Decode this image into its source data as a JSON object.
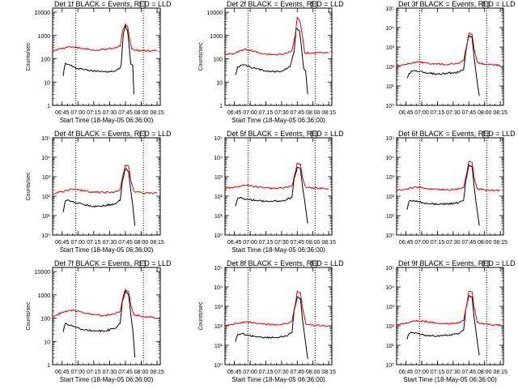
{
  "chart_data": [
    {
      "type": "line",
      "title": "Det 1f BLACK = Events, RED = LLD",
      "xlabel": "Start Time (18-May-05 06:36:00)",
      "ylabel": "Counts/sec",
      "x_ticks": [
        "06:45",
        "07:00",
        "07:15",
        "07:30",
        "07:45",
        "08:00",
        "08:15"
      ],
      "y_ticks": [
        "1",
        "10",
        "100",
        "1000",
        "10000"
      ],
      "y_scale": "log",
      "ylim": [
        1,
        15000
      ],
      "vlines": [
        "06:58",
        "08:02"
      ],
      "series": [
        {
          "color": "#000000",
          "x": [
            "06:46",
            "06:48",
            "06:52",
            "06:56",
            "07:00",
            "07:10",
            "07:20",
            "07:30",
            "07:35",
            "07:40",
            "07:41",
            "07:43",
            "07:45",
            "07:47",
            "07:49",
            "07:50",
            "07:52",
            "07:53"
          ],
          "values": [
            18,
            65,
            55,
            45,
            38,
            32,
            28,
            28,
            30,
            40,
            60,
            1200,
            2600,
            1600,
            200,
            60,
            50,
            3
          ]
        },
        {
          "color": "#dd0000",
          "x": [
            "06:36",
            "06:45",
            "06:55",
            "07:05",
            "07:15",
            "07:25",
            "07:35",
            "07:40",
            "07:42",
            "07:45",
            "07:47",
            "07:49",
            "07:51",
            "07:55",
            "08:05",
            "08:15"
          ],
          "values": [
            220,
            280,
            330,
            270,
            240,
            250,
            290,
            340,
            1400,
            3100,
            2400,
            700,
            260,
            230,
            220,
            220
          ]
        }
      ]
    },
    {
      "type": "line",
      "title": "Det 2f BLACK = Events, RED = LLD",
      "xlabel": "Start Time (18-May-05 06:36:00)",
      "ylabel": "Counts/sec",
      "x_ticks": [
        "06:45",
        "07:00",
        "07:15",
        "07:30",
        "07:45",
        "08:00",
        "08:15"
      ],
      "y_ticks": [
        "1",
        "10",
        "100",
        "1000",
        "10000"
      ],
      "y_scale": "log",
      "ylim": [
        1,
        15000
      ],
      "vlines": [
        "06:58",
        "08:02"
      ],
      "series": [
        {
          "color": "#000000",
          "x": [
            "06:46",
            "06:48",
            "06:52",
            "06:58",
            "07:05",
            "07:15",
            "07:25",
            "07:30",
            "07:38",
            "07:42",
            "07:44",
            "07:47",
            "07:49",
            "07:51",
            "07:53",
            "07:55"
          ],
          "values": [
            20,
            45,
            55,
            48,
            38,
            30,
            28,
            30,
            45,
            200,
            2000,
            1600,
            300,
            40,
            30,
            3
          ]
        },
        {
          "color": "#dd0000",
          "x": [
            "06:36",
            "06:45",
            "06:55",
            "07:05",
            "07:15",
            "07:25",
            "07:35",
            "07:40",
            "07:43",
            "07:45",
            "07:48",
            "07:50",
            "07:52",
            "08:00",
            "08:10",
            "08:15"
          ],
          "values": [
            150,
            170,
            260,
            200,
            160,
            150,
            170,
            230,
            1000,
            6000,
            3500,
            900,
            180,
            180,
            180,
            170
          ]
        }
      ]
    },
    {
      "type": "line",
      "title": "Det 3f BLACK = Events, RED = LLD",
      "xlabel": "",
      "ylabel": "",
      "x_ticks": [
        "06:45",
        "07:00",
        "07:15",
        "07:30",
        "07:45",
        "08:00",
        "08:15"
      ],
      "y_ticks": [
        "10⁰",
        "10¹",
        "10²",
        "10³",
        "10⁴",
        "10⁵"
      ],
      "y_scale": "log",
      "ylim": [
        1,
        100000
      ],
      "vlines": [
        "06:58",
        "08:02"
      ],
      "series": [
        {
          "color": "#000000",
          "x": [
            "06:46",
            "06:48",
            "06:52",
            "06:58",
            "07:05",
            "07:15",
            "07:25",
            "07:35",
            "07:40",
            "07:42",
            "07:45",
            "07:48",
            "07:50",
            "07:52",
            "07:55"
          ],
          "values": [
            25,
            45,
            60,
            55,
            45,
            40,
            45,
            50,
            70,
            500,
            4000,
            3000,
            300,
            40,
            3
          ]
        },
        {
          "color": "#dd0000",
          "x": [
            "06:36",
            "06:45",
            "06:55",
            "07:05",
            "07:15",
            "07:25",
            "07:35",
            "07:40",
            "07:43",
            "07:45",
            "07:48",
            "07:50",
            "07:53",
            "08:00",
            "08:10",
            "08:15"
          ],
          "values": [
            110,
            130,
            170,
            150,
            130,
            130,
            150,
            200,
            1200,
            5000,
            4500,
            800,
            160,
            130,
            120,
            110
          ]
        }
      ]
    },
    {
      "type": "line",
      "title": "Det 4f BLACK = Events, RED = LLD",
      "xlabel": "Start Time (18-May-05 06:36:00)",
      "ylabel": "Counts/sec",
      "x_ticks": [
        "06:45",
        "07:00",
        "07:15",
        "07:30",
        "07:45",
        "08:00",
        "08:15"
      ],
      "y_ticks": [
        "10⁰",
        "10¹",
        "10²",
        "10³",
        "10⁴",
        "10⁵"
      ],
      "y_scale": "log",
      "ylim": [
        1,
        100000
      ],
      "vlines": [
        "06:58",
        "08:02"
      ],
      "series": [
        {
          "color": "#000000",
          "x": [
            "06:46",
            "06:48",
            "06:52",
            "06:58",
            "07:05",
            "07:15",
            "07:25",
            "07:35",
            "07:40",
            "07:42",
            "07:45",
            "07:48",
            "07:50",
            "07:52",
            "07:54"
          ],
          "values": [
            15,
            55,
            60,
            45,
            38,
            30,
            32,
            40,
            60,
            600,
            2500,
            1800,
            200,
            30,
            3
          ]
        },
        {
          "color": "#dd0000",
          "x": [
            "06:36",
            "06:45",
            "06:55",
            "07:05",
            "07:15",
            "07:25",
            "07:35",
            "07:40",
            "07:43",
            "07:45",
            "07:48",
            "07:50",
            "07:53",
            "08:00",
            "08:10",
            "08:15"
          ],
          "values": [
            140,
            170,
            230,
            190,
            160,
            150,
            170,
            220,
            1500,
            4000,
            3500,
            700,
            180,
            150,
            140,
            140
          ]
        }
      ]
    },
    {
      "type": "line",
      "title": "Det 5f BLACK = Events, RED = LLD",
      "xlabel": "Start Time (18-May-05 06:36:00)",
      "ylabel": "",
      "x_ticks": [
        "06:45",
        "07:00",
        "07:15",
        "07:30",
        "07:45",
        "08:00",
        "08:15"
      ],
      "y_ticks": [
        "10⁰",
        "10¹",
        "10²",
        "10³",
        "10⁴",
        "10⁵"
      ],
      "y_scale": "log",
      "ylim": [
        1,
        100000
      ],
      "vlines": [
        "06:58",
        "08:02"
      ],
      "series": [
        {
          "color": "#000000",
          "x": [
            "06:46",
            "06:48",
            "06:52",
            "06:58",
            "07:05",
            "07:15",
            "07:25",
            "07:35",
            "07:40",
            "07:42",
            "07:45",
            "07:48",
            "07:50",
            "07:52",
            "07:55"
          ],
          "values": [
            30,
            75,
            80,
            70,
            60,
            55,
            55,
            65,
            90,
            800,
            3000,
            2500,
            300,
            60,
            4
          ]
        },
        {
          "color": "#dd0000",
          "x": [
            "06:36",
            "06:45",
            "06:55",
            "07:05",
            "07:15",
            "07:25",
            "07:35",
            "07:40",
            "07:43",
            "07:45",
            "07:48",
            "07:50",
            "07:53",
            "08:00",
            "08:10",
            "08:15"
          ],
          "values": [
            250,
            280,
            350,
            300,
            260,
            250,
            280,
            340,
            1600,
            5000,
            4500,
            900,
            300,
            260,
            250,
            250
          ]
        }
      ]
    },
    {
      "type": "line",
      "title": "Det 6f BLACK = Events, RED = LLD",
      "xlabel": "",
      "ylabel": "",
      "x_ticks": [
        "06:45",
        "07:00",
        "07:15",
        "07:30",
        "07:45",
        "08:00",
        "08:15"
      ],
      "y_ticks": [
        "10⁰",
        "10¹",
        "10²",
        "10³",
        "10⁴",
        "10⁵"
      ],
      "y_scale": "log",
      "ylim": [
        1,
        100000
      ],
      "vlines": [
        "06:58",
        "08:02"
      ],
      "series": [
        {
          "color": "#000000",
          "x": [
            "06:46",
            "06:48",
            "06:52",
            "06:58",
            "07:05",
            "07:15",
            "07:25",
            "07:35",
            "07:40",
            "07:42",
            "07:45",
            "07:48",
            "07:50",
            "07:52",
            "07:55"
          ],
          "values": [
            20,
            55,
            60,
            50,
            42,
            38,
            40,
            45,
            60,
            600,
            4000,
            3500,
            300,
            40,
            3
          ]
        },
        {
          "color": "#dd0000",
          "x": [
            "06:36",
            "06:45",
            "06:55",
            "07:05",
            "07:15",
            "07:25",
            "07:35",
            "07:40",
            "07:43",
            "07:45",
            "07:48",
            "07:50",
            "07:53",
            "08:00",
            "08:10",
            "08:15"
          ],
          "values": [
            200,
            230,
            290,
            250,
            220,
            210,
            230,
            280,
            1500,
            6000,
            5500,
            900,
            230,
            210,
            200,
            200
          ]
        }
      ]
    },
    {
      "type": "line",
      "title": "Det 7f BLACK = Events, RED = LLD",
      "xlabel": "Start Time (18-May-05 06:36:00)",
      "ylabel": "Counts/sec",
      "x_ticks": [
        "06:45",
        "07:00",
        "07:15",
        "07:30",
        "07:45",
        "08:00",
        "08:15"
      ],
      "y_ticks": [
        "1",
        "10",
        "100",
        "1000",
        "10000"
      ],
      "y_scale": "log",
      "ylim": [
        1,
        15000
      ],
      "vlines": [
        "06:58",
        "08:02"
      ],
      "series": [
        {
          "color": "#000000",
          "x": [
            "06:46",
            "06:48",
            "06:52",
            "06:58",
            "07:05",
            "07:15",
            "07:25",
            "07:35",
            "07:40",
            "07:42",
            "07:45",
            "07:48",
            "07:50",
            "07:52",
            "07:54"
          ],
          "values": [
            25,
            60,
            50,
            40,
            32,
            28,
            28,
            35,
            60,
            500,
            1500,
            1000,
            150,
            30,
            2
          ]
        },
        {
          "color": "#dd0000",
          "x": [
            "06:36",
            "06:45",
            "06:55",
            "07:05",
            "07:15",
            "07:25",
            "07:35",
            "07:40",
            "07:43",
            "07:45",
            "07:48",
            "07:50",
            "07:53",
            "08:00",
            "08:10",
            "08:15"
          ],
          "values": [
            110,
            180,
            220,
            170,
            140,
            130,
            150,
            200,
            900,
            1700,
            1300,
            400,
            140,
            120,
            110,
            100
          ]
        }
      ]
    },
    {
      "type": "line",
      "title": "Det 8f BLACK = Events, RED = LLD",
      "xlabel": "Start Time (18-May-05 06:36:00)",
      "ylabel": "Counts/sec",
      "x_ticks": [
        "06:45",
        "07:00",
        "07:15",
        "07:30",
        "07:45",
        "08:00",
        "08:15"
      ],
      "y_ticks": [
        "10⁰",
        "10¹",
        "10²",
        "10³",
        "10⁴",
        "10⁵"
      ],
      "y_scale": "log",
      "ylim": [
        1,
        100000
      ],
      "vlines": [
        "06:58",
        "08:02"
      ],
      "series": [
        {
          "color": "#000000",
          "x": [
            "06:46",
            "06:48",
            "06:52",
            "06:58",
            "07:05",
            "07:15",
            "07:25",
            "07:35",
            "07:40",
            "07:42",
            "07:45",
            "07:48",
            "07:50",
            "07:52",
            "07:55"
          ],
          "values": [
            15,
            35,
            40,
            32,
            28,
            25,
            25,
            30,
            45,
            600,
            3000,
            2500,
            200,
            30,
            2
          ]
        },
        {
          "color": "#dd0000",
          "x": [
            "06:36",
            "06:45",
            "06:55",
            "07:05",
            "07:15",
            "07:25",
            "07:35",
            "07:40",
            "07:43",
            "07:45",
            "07:48",
            "07:50",
            "07:53",
            "08:00",
            "08:10",
            "08:15"
          ],
          "values": [
            100,
            120,
            160,
            140,
            120,
            115,
            130,
            180,
            1200,
            6000,
            5000,
            800,
            130,
            110,
            100,
            100
          ]
        }
      ]
    },
    {
      "type": "line",
      "title": "Det 9f BLACK = Events, RED = LLD",
      "xlabel": "Start Time (18-May-05 06:36:00)",
      "ylabel": "",
      "x_ticks": [
        "06:45",
        "07:00",
        "07:15",
        "07:30",
        "07:45",
        "08:00",
        "08:15"
      ],
      "y_ticks": [
        "10⁰",
        "10¹",
        "10²",
        "10³",
        "10⁴",
        "10⁵"
      ],
      "y_scale": "log",
      "ylim": [
        1,
        100000
      ],
      "vlines": [
        "06:58",
        "08:02"
      ],
      "series": [
        {
          "color": "#000000",
          "x": [
            "06:46",
            "06:48",
            "06:52",
            "06:58",
            "07:05",
            "07:15",
            "07:25",
            "07:35",
            "07:40",
            "07:42",
            "07:45",
            "07:48",
            "07:50",
            "07:52",
            "07:55"
          ],
          "values": [
            20,
            40,
            45,
            38,
            32,
            30,
            32,
            40,
            60,
            700,
            3500,
            3000,
            250,
            40,
            3
          ]
        },
        {
          "color": "#dd0000",
          "x": [
            "06:36",
            "06:45",
            "06:55",
            "07:05",
            "07:15",
            "07:25",
            "07:35",
            "07:40",
            "07:43",
            "07:45",
            "07:48",
            "07:50",
            "07:53",
            "08:00",
            "08:10",
            "08:15"
          ],
          "values": [
            110,
            130,
            190,
            160,
            130,
            125,
            140,
            190,
            1200,
            6000,
            5500,
            900,
            150,
            120,
            110,
            110
          ]
        }
      ]
    }
  ]
}
